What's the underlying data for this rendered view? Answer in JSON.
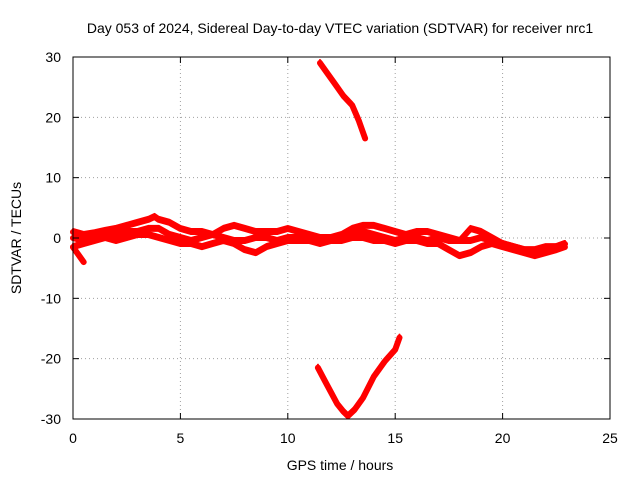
{
  "chart_data": {
    "type": "line",
    "title": "Day 053 of 2024, Sidereal Day-to-day VTEC variation (SDTVAR) for receiver nrc1",
    "xlabel": "GPS time / hours",
    "ylabel": "SDTVAR / TECUs",
    "xlim": [
      0,
      25
    ],
    "ylim": [
      -30,
      30
    ],
    "xticks": [
      0,
      5,
      10,
      15,
      20,
      25
    ],
    "xtick_labels": [
      "0",
      "5",
      "10",
      "15",
      "20",
      "25"
    ],
    "yticks": [
      -30,
      -20,
      -10,
      0,
      10,
      20,
      30
    ],
    "ytick_labels": [
      "-30",
      "-20",
      "-10",
      "0",
      "10",
      "20",
      "30"
    ],
    "grid": true,
    "legend": "none",
    "color": "#ff0000",
    "series": [
      {
        "name": "main-band-upper",
        "x": [
          0.0,
          0.5,
          1.0,
          1.5,
          2.0,
          2.5,
          3.0,
          3.5,
          3.8,
          4.0,
          4.5,
          5.0,
          5.5,
          6.0,
          6.5,
          7.0,
          7.5,
          8.0,
          8.5,
          9.0,
          9.5,
          10.0,
          10.5,
          11.0,
          11.5,
          12.0,
          12.5,
          13.0,
          13.5,
          14.0,
          14.5,
          15.0,
          15.5,
          16.0,
          16.5,
          17.0,
          17.5,
          18.0,
          18.5,
          19.0,
          19.5,
          20.0,
          20.5,
          21.0,
          21.5,
          22.0,
          22.5,
          22.9
        ],
        "y": [
          1.0,
          0.5,
          0.8,
          1.2,
          1.5,
          2.0,
          2.5,
          3.0,
          3.5,
          3.0,
          2.5,
          1.5,
          1.0,
          1.0,
          0.5,
          1.5,
          2.0,
          1.5,
          1.0,
          1.0,
          1.0,
          1.5,
          1.0,
          0.5,
          0.0,
          0.0,
          0.5,
          1.5,
          2.0,
          2.0,
          1.5,
          1.0,
          0.5,
          1.0,
          1.0,
          0.5,
          0.0,
          -0.5,
          1.5,
          1.0,
          0.0,
          -1.0,
          -1.5,
          -2.0,
          -2.5,
          -2.0,
          -1.5,
          -1.0
        ]
      },
      {
        "name": "main-band-mid",
        "x": [
          0.0,
          0.5,
          1.0,
          1.5,
          2.0,
          2.5,
          3.0,
          3.5,
          4.0,
          4.5,
          5.0,
          5.5,
          6.0,
          6.5,
          7.0,
          7.5,
          8.0,
          8.5,
          9.0,
          9.5,
          10.0,
          10.5,
          11.0,
          11.5,
          12.0,
          12.5,
          13.0,
          13.5,
          14.0,
          14.5,
          15.0,
          15.5,
          16.0,
          16.5,
          17.0,
          17.5,
          18.0,
          18.5,
          19.0,
          19.5,
          20.0,
          20.5,
          21.0,
          21.5,
          22.0,
          22.5,
          22.9
        ],
        "y": [
          0.0,
          -0.5,
          0.0,
          0.5,
          0.5,
          1.0,
          1.0,
          1.5,
          1.5,
          0.5,
          0.0,
          -0.5,
          0.0,
          0.5,
          0.0,
          -0.5,
          -0.5,
          0.0,
          0.0,
          -0.5,
          0.0,
          0.0,
          0.0,
          -0.5,
          0.0,
          0.0,
          0.5,
          1.0,
          0.5,
          0.0,
          -0.5,
          0.0,
          0.0,
          -0.5,
          0.0,
          -0.5,
          -0.5,
          -0.5,
          0.0,
          -0.5,
          -1.0,
          -1.5,
          -2.0,
          -2.0,
          -1.5,
          -1.5,
          -1.0
        ]
      },
      {
        "name": "main-band-lower",
        "x": [
          0.0,
          0.5,
          1.0,
          1.5,
          2.0,
          2.5,
          3.0,
          3.5,
          4.0,
          4.5,
          5.0,
          5.5,
          6.0,
          6.5,
          7.0,
          7.5,
          8.0,
          8.5,
          9.0,
          9.5,
          10.0,
          10.5,
          11.0,
          11.5,
          12.0,
          12.5,
          13.0,
          13.5,
          14.0,
          14.5,
          15.0,
          15.5,
          16.0,
          16.5,
          17.0,
          17.5,
          18.0,
          18.5,
          19.0,
          19.5,
          20.0,
          20.5,
          21.0,
          21.5,
          22.0,
          22.5,
          22.9
        ],
        "y": [
          -1.5,
          -1.0,
          -0.5,
          0.0,
          -0.5,
          0.0,
          0.5,
          0.5,
          0.0,
          -0.5,
          -1.0,
          -1.0,
          -1.5,
          -1.0,
          -0.5,
          -1.0,
          -2.0,
          -2.5,
          -1.5,
          -1.0,
          -0.5,
          -0.5,
          -0.5,
          -1.0,
          -0.5,
          -0.5,
          0.0,
          0.0,
          -0.5,
          -0.5,
          -1.0,
          -0.5,
          -0.5,
          -1.0,
          -1.0,
          -2.0,
          -3.0,
          -2.5,
          -1.5,
          -1.0,
          -1.5,
          -2.0,
          -2.5,
          -3.0,
          -2.5,
          -2.0,
          -1.5
        ]
      },
      {
        "name": "start-dip",
        "x": [
          0.0,
          0.2,
          0.5
        ],
        "y": [
          -1.5,
          -2.5,
          -4.0
        ]
      },
      {
        "name": "upper-spike",
        "x": [
          11.5,
          11.8,
          12.2,
          12.6,
          13.0,
          13.3,
          13.6
        ],
        "y": [
          29.0,
          27.5,
          25.5,
          23.5,
          22.0,
          19.5,
          16.5
        ]
      },
      {
        "name": "lower-dip",
        "x": [
          11.4,
          11.7,
          12.0,
          12.3,
          12.6,
          12.8,
          13.1,
          13.5,
          14.0,
          14.5,
          15.0,
          15.2
        ],
        "y": [
          -21.5,
          -23.5,
          -25.5,
          -27.5,
          -28.8,
          -29.5,
          -28.5,
          -26.5,
          -23.0,
          -20.5,
          -18.5,
          -16.5
        ]
      }
    ]
  }
}
